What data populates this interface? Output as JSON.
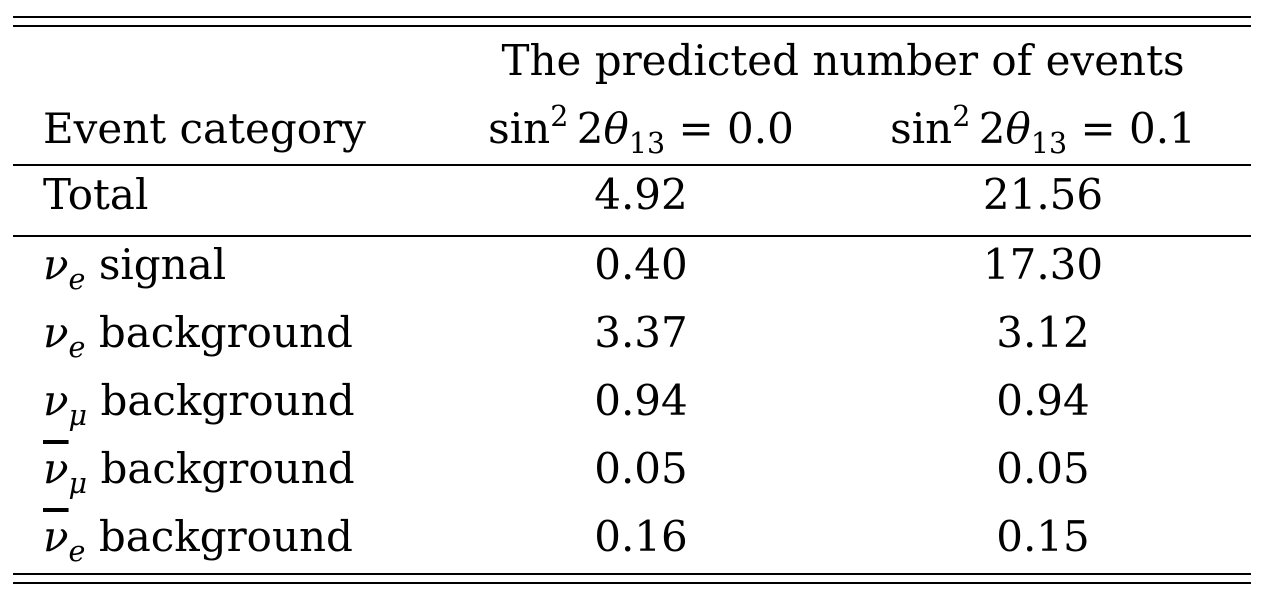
{
  "table": {
    "header_group": "The predicted number of events",
    "header_col1": "Event category",
    "header_col2": {
      "func": "sin",
      "exp": "2",
      "coef": "2",
      "symbol": "θ",
      "sub": "13",
      "rel": " = 0.0"
    },
    "header_col3": {
      "func": "sin",
      "exp": "2",
      "coef": "2",
      "symbol": "θ",
      "sub": "13",
      "rel": " = 0.1"
    },
    "total": {
      "label": "Total",
      "v1": "4.92",
      "v2": "21.56"
    },
    "rows": [
      {
        "sym": "ν",
        "sub": "e",
        "bar": false,
        "text": "signal",
        "v1": "0.40",
        "v2": "17.30"
      },
      {
        "sym": "ν",
        "sub": "e",
        "bar": false,
        "text": "background",
        "v1": "3.37",
        "v2": "3.12"
      },
      {
        "sym": "ν",
        "sub": "μ",
        "bar": false,
        "text": "background",
        "v1": "0.94",
        "v2": "0.94"
      },
      {
        "sym": "ν",
        "sub": "μ",
        "bar": true,
        "text": "background",
        "v1": "0.05",
        "v2": "0.05"
      },
      {
        "sym": "ν",
        "sub": "e",
        "bar": true,
        "text": "background",
        "v1": "0.16",
        "v2": "0.15"
      }
    ]
  }
}
